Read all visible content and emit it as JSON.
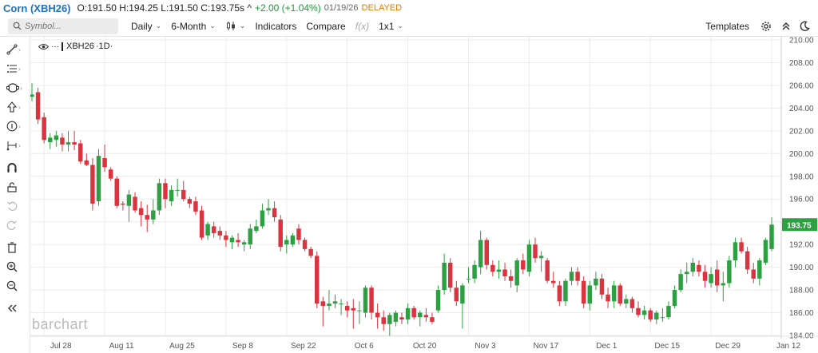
{
  "quote": {
    "title": "Corn (XBH26)",
    "ohlc": "O:191.50 H:194.25 L:191.50 C:193.75s ^",
    "change": "+2.00 (+1.04%)",
    "date": "01/19/26",
    "status": "DELAYED"
  },
  "toolbar": {
    "search_placeholder": "Symbol...",
    "interval": "Daily",
    "range": "6-Month",
    "chart_type_icon": "candlestick-icon",
    "indicators": "Indicators",
    "compare": "Compare",
    "fx": "f(x)",
    "layout": "1x1",
    "templates": "Templates"
  },
  "series_label": {
    "symbol": "XBH26",
    "interval": "·1D·"
  },
  "watermark": "barchart",
  "colors": {
    "up": "#2ea043",
    "down": "#d9343f",
    "last_price_bg": "#2ea043",
    "grid": "#ececec",
    "link": "#1a73c8"
  },
  "chart_data": {
    "type": "candlestick",
    "ylim": [
      184,
      210
    ],
    "y_ticks": [
      184,
      186,
      188,
      190,
      192,
      194,
      196,
      198,
      200,
      202,
      204,
      206,
      208,
      210
    ],
    "y_tick_labels": [
      "184.00",
      "186.00",
      "188.00",
      "190.00",
      "192.00",
      "194.00",
      "196.00",
      "198.00",
      "200.00",
      "202.00",
      "204.00",
      "206.00",
      "208.00",
      "210.00"
    ],
    "x_tick_labels": [
      "Jul 28",
      "Aug 11",
      "Aug 25",
      "Sep 8",
      "Sep 22",
      "Oct 6",
      "Oct 20",
      "Nov 3",
      "Nov 17",
      "Dec 1",
      "Dec 15",
      "Dec 29",
      "Jan 12"
    ],
    "x_tick_bar_index": [
      2,
      12,
      22,
      32,
      42,
      52,
      62,
      72,
      82,
      92,
      102,
      112,
      122
    ],
    "last_price": 193.75,
    "last_price_label": "193.75",
    "bars": [
      {
        "o": 205.0,
        "h": 206.2,
        "l": 204.6,
        "c": 205.2
      },
      {
        "o": 205.4,
        "h": 205.8,
        "l": 202.6,
        "c": 203.0
      },
      {
        "o": 203.2,
        "h": 203.6,
        "l": 200.9,
        "c": 201.2
      },
      {
        "o": 201.0,
        "h": 201.8,
        "l": 200.4,
        "c": 201.4
      },
      {
        "o": 201.2,
        "h": 202.0,
        "l": 200.6,
        "c": 201.6
      },
      {
        "o": 201.4,
        "h": 201.8,
        "l": 200.2,
        "c": 200.8
      },
      {
        "o": 200.8,
        "h": 202.0,
        "l": 200.2,
        "c": 201.0
      },
      {
        "o": 201.0,
        "h": 202.0,
        "l": 200.3,
        "c": 200.8
      },
      {
        "o": 200.9,
        "h": 201.2,
        "l": 199.1,
        "c": 199.3
      },
      {
        "o": 199.4,
        "h": 200.0,
        "l": 198.9,
        "c": 199.0
      },
      {
        "o": 199.0,
        "h": 199.6,
        "l": 195.0,
        "c": 195.6
      },
      {
        "o": 195.8,
        "h": 200.4,
        "l": 195.4,
        "c": 199.8
      },
      {
        "o": 199.6,
        "h": 200.8,
        "l": 198.4,
        "c": 198.8
      },
      {
        "o": 198.6,
        "h": 198.8,
        "l": 197.6,
        "c": 197.8
      },
      {
        "o": 197.8,
        "h": 198.0,
        "l": 195.2,
        "c": 195.4
      },
      {
        "o": 195.6,
        "h": 195.8,
        "l": 195.0,
        "c": 195.5
      },
      {
        "o": 195.4,
        "h": 196.8,
        "l": 194.0,
        "c": 196.4
      },
      {
        "o": 196.2,
        "h": 196.6,
        "l": 194.8,
        "c": 195.0
      },
      {
        "o": 195.2,
        "h": 195.8,
        "l": 193.6,
        "c": 194.6
      },
      {
        "o": 194.6,
        "h": 195.5,
        "l": 193.1,
        "c": 194.2
      },
      {
        "o": 194.2,
        "h": 196.0,
        "l": 193.8,
        "c": 195.0
      },
      {
        "o": 195.0,
        "h": 197.8,
        "l": 194.6,
        "c": 197.4
      },
      {
        "o": 197.4,
        "h": 197.8,
        "l": 195.2,
        "c": 196.0
      },
      {
        "o": 195.8,
        "h": 197.2,
        "l": 195.4,
        "c": 196.8
      },
      {
        "o": 196.8,
        "h": 197.8,
        "l": 196.2,
        "c": 196.8
      },
      {
        "o": 196.8,
        "h": 197.6,
        "l": 195.8,
        "c": 196.0
      },
      {
        "o": 196.0,
        "h": 196.2,
        "l": 195.2,
        "c": 195.6
      },
      {
        "o": 195.8,
        "h": 196.2,
        "l": 194.6,
        "c": 194.9
      },
      {
        "o": 195.0,
        "h": 195.4,
        "l": 192.4,
        "c": 192.6
      },
      {
        "o": 192.8,
        "h": 194.0,
        "l": 192.4,
        "c": 193.8
      },
      {
        "o": 193.6,
        "h": 194.0,
        "l": 192.6,
        "c": 193.0
      },
      {
        "o": 193.2,
        "h": 193.6,
        "l": 192.4,
        "c": 192.8
      },
      {
        "o": 192.8,
        "h": 193.2,
        "l": 191.8,
        "c": 192.4
      },
      {
        "o": 192.2,
        "h": 192.8,
        "l": 191.6,
        "c": 192.6
      },
      {
        "o": 192.4,
        "h": 193.0,
        "l": 191.8,
        "c": 192.2
      },
      {
        "o": 192.0,
        "h": 192.4,
        "l": 191.4,
        "c": 192.2
      },
      {
        "o": 192.0,
        "h": 193.8,
        "l": 191.6,
        "c": 193.4
      },
      {
        "o": 193.2,
        "h": 194.2,
        "l": 193.0,
        "c": 193.6
      },
      {
        "o": 193.6,
        "h": 195.6,
        "l": 193.4,
        "c": 195.0
      },
      {
        "o": 195.0,
        "h": 196.0,
        "l": 194.6,
        "c": 195.2
      },
      {
        "o": 195.2,
        "h": 195.8,
        "l": 194.0,
        "c": 194.4
      },
      {
        "o": 194.2,
        "h": 194.6,
        "l": 191.4,
        "c": 191.8
      },
      {
        "o": 192.0,
        "h": 192.8,
        "l": 191.2,
        "c": 192.4
      },
      {
        "o": 192.0,
        "h": 193.0,
        "l": 191.8,
        "c": 192.8
      },
      {
        "o": 193.4,
        "h": 193.8,
        "l": 192.0,
        "c": 192.4
      },
      {
        "o": 192.4,
        "h": 192.6,
        "l": 191.4,
        "c": 191.6
      },
      {
        "o": 191.6,
        "h": 191.8,
        "l": 190.8,
        "c": 191.0
      },
      {
        "o": 191.0,
        "h": 191.4,
        "l": 186.4,
        "c": 186.8
      },
      {
        "o": 187.0,
        "h": 187.4,
        "l": 184.8,
        "c": 186.6
      },
      {
        "o": 186.6,
        "h": 188.0,
        "l": 186.2,
        "c": 186.8
      },
      {
        "o": 186.8,
        "h": 187.6,
        "l": 186.4,
        "c": 187.0
      },
      {
        "o": 186.8,
        "h": 187.2,
        "l": 185.8,
        "c": 186.8
      },
      {
        "o": 186.6,
        "h": 187.0,
        "l": 185.6,
        "c": 186.2
      },
      {
        "o": 186.4,
        "h": 187.2,
        "l": 184.6,
        "c": 186.2
      },
      {
        "o": 186.2,
        "h": 187.0,
        "l": 185.0,
        "c": 186.2
      },
      {
        "o": 186.0,
        "h": 188.4,
        "l": 185.6,
        "c": 188.2
      },
      {
        "o": 188.2,
        "h": 188.4,
        "l": 185.4,
        "c": 186.0
      },
      {
        "o": 186.0,
        "h": 186.8,
        "l": 184.6,
        "c": 185.6
      },
      {
        "o": 185.6,
        "h": 186.2,
        "l": 184.4,
        "c": 185.0
      },
      {
        "o": 185.0,
        "h": 186.0,
        "l": 183.9,
        "c": 185.8
      },
      {
        "o": 185.2,
        "h": 186.2,
        "l": 184.8,
        "c": 186.0
      },
      {
        "o": 185.6,
        "h": 186.0,
        "l": 185.0,
        "c": 185.4
      },
      {
        "o": 185.4,
        "h": 186.8,
        "l": 185.0,
        "c": 186.4
      },
      {
        "o": 186.4,
        "h": 186.6,
        "l": 185.4,
        "c": 185.6
      },
      {
        "o": 185.6,
        "h": 186.2,
        "l": 184.8,
        "c": 186.0
      },
      {
        "o": 185.8,
        "h": 186.4,
        "l": 185.2,
        "c": 185.6
      },
      {
        "o": 185.6,
        "h": 186.0,
        "l": 185.0,
        "c": 185.2
      },
      {
        "o": 186.2,
        "h": 188.4,
        "l": 186.0,
        "c": 188.0
      },
      {
        "o": 188.0,
        "h": 191.2,
        "l": 187.6,
        "c": 190.4
      },
      {
        "o": 190.4,
        "h": 190.8,
        "l": 187.8,
        "c": 188.2
      },
      {
        "o": 188.2,
        "h": 188.8,
        "l": 186.6,
        "c": 187.0
      },
      {
        "o": 186.8,
        "h": 188.6,
        "l": 184.6,
        "c": 188.4
      },
      {
        "o": 189.0,
        "h": 190.0,
        "l": 188.6,
        "c": 189.0
      },
      {
        "o": 189.0,
        "h": 190.6,
        "l": 188.6,
        "c": 190.2
      },
      {
        "o": 190.0,
        "h": 193.2,
        "l": 189.4,
        "c": 192.4
      },
      {
        "o": 192.4,
        "h": 192.6,
        "l": 189.8,
        "c": 190.2
      },
      {
        "o": 190.2,
        "h": 190.6,
        "l": 189.2,
        "c": 189.6
      },
      {
        "o": 189.6,
        "h": 190.6,
        "l": 189.0,
        "c": 189.8
      },
      {
        "o": 189.8,
        "h": 190.4,
        "l": 188.8,
        "c": 189.2
      },
      {
        "o": 189.2,
        "h": 189.8,
        "l": 188.2,
        "c": 188.8
      },
      {
        "o": 188.4,
        "h": 190.8,
        "l": 187.8,
        "c": 190.6
      },
      {
        "o": 190.6,
        "h": 191.2,
        "l": 189.4,
        "c": 189.8
      },
      {
        "o": 189.6,
        "h": 192.4,
        "l": 189.2,
        "c": 192.0
      },
      {
        "o": 192.0,
        "h": 192.6,
        "l": 190.4,
        "c": 190.8
      },
      {
        "o": 190.8,
        "h": 191.4,
        "l": 189.6,
        "c": 191.0
      },
      {
        "o": 190.6,
        "h": 190.8,
        "l": 188.6,
        "c": 188.8
      },
      {
        "o": 188.8,
        "h": 189.6,
        "l": 188.2,
        "c": 188.6
      },
      {
        "o": 188.4,
        "h": 188.8,
        "l": 186.6,
        "c": 187.0
      },
      {
        "o": 187.0,
        "h": 189.0,
        "l": 186.6,
        "c": 188.8
      },
      {
        "o": 188.8,
        "h": 190.0,
        "l": 188.4,
        "c": 189.6
      },
      {
        "o": 189.6,
        "h": 190.0,
        "l": 188.4,
        "c": 188.8
      },
      {
        "o": 188.8,
        "h": 189.2,
        "l": 186.4,
        "c": 186.8
      },
      {
        "o": 186.8,
        "h": 188.8,
        "l": 186.2,
        "c": 188.4
      },
      {
        "o": 188.4,
        "h": 189.6,
        "l": 188.0,
        "c": 189.0
      },
      {
        "o": 189.0,
        "h": 189.4,
        "l": 187.2,
        "c": 187.6
      },
      {
        "o": 187.6,
        "h": 188.2,
        "l": 186.4,
        "c": 187.0
      },
      {
        "o": 187.0,
        "h": 188.8,
        "l": 186.4,
        "c": 188.4
      },
      {
        "o": 188.4,
        "h": 188.6,
        "l": 186.6,
        "c": 186.8
      },
      {
        "o": 186.8,
        "h": 187.6,
        "l": 186.4,
        "c": 187.2
      },
      {
        "o": 187.2,
        "h": 187.4,
        "l": 186.0,
        "c": 186.4
      },
      {
        "o": 186.4,
        "h": 187.0,
        "l": 185.6,
        "c": 185.8
      },
      {
        "o": 185.8,
        "h": 186.6,
        "l": 185.4,
        "c": 186.2
      },
      {
        "o": 186.2,
        "h": 186.4,
        "l": 185.2,
        "c": 185.4
      },
      {
        "o": 185.4,
        "h": 186.2,
        "l": 185.0,
        "c": 186.0
      },
      {
        "o": 185.6,
        "h": 186.4,
        "l": 185.2,
        "c": 185.6
      },
      {
        "o": 185.6,
        "h": 187.0,
        "l": 185.4,
        "c": 186.6
      },
      {
        "o": 186.6,
        "h": 188.4,
        "l": 186.4,
        "c": 188.0
      },
      {
        "o": 188.0,
        "h": 189.8,
        "l": 187.8,
        "c": 189.4
      },
      {
        "o": 189.4,
        "h": 190.4,
        "l": 188.6,
        "c": 189.6
      },
      {
        "o": 189.6,
        "h": 190.8,
        "l": 189.2,
        "c": 190.4
      },
      {
        "o": 190.2,
        "h": 190.6,
        "l": 189.2,
        "c": 189.6
      },
      {
        "o": 189.6,
        "h": 190.2,
        "l": 188.2,
        "c": 188.8
      },
      {
        "o": 188.6,
        "h": 190.0,
        "l": 188.2,
        "c": 189.4
      },
      {
        "o": 189.8,
        "h": 190.6,
        "l": 187.8,
        "c": 188.4
      },
      {
        "o": 188.4,
        "h": 189.6,
        "l": 187.0,
        "c": 188.6
      },
      {
        "o": 188.6,
        "h": 191.0,
        "l": 188.2,
        "c": 190.6
      },
      {
        "o": 190.6,
        "h": 192.6,
        "l": 190.0,
        "c": 192.2
      },
      {
        "o": 192.2,
        "h": 192.6,
        "l": 191.2,
        "c": 191.4
      },
      {
        "o": 191.4,
        "h": 191.8,
        "l": 189.4,
        "c": 189.8
      },
      {
        "o": 189.8,
        "h": 190.4,
        "l": 188.6,
        "c": 189.0
      },
      {
        "o": 189.0,
        "h": 190.8,
        "l": 188.4,
        "c": 190.6
      },
      {
        "o": 190.4,
        "h": 192.6,
        "l": 190.2,
        "c": 192.4
      },
      {
        "o": 191.6,
        "h": 194.4,
        "l": 191.4,
        "c": 193.75
      }
    ]
  }
}
